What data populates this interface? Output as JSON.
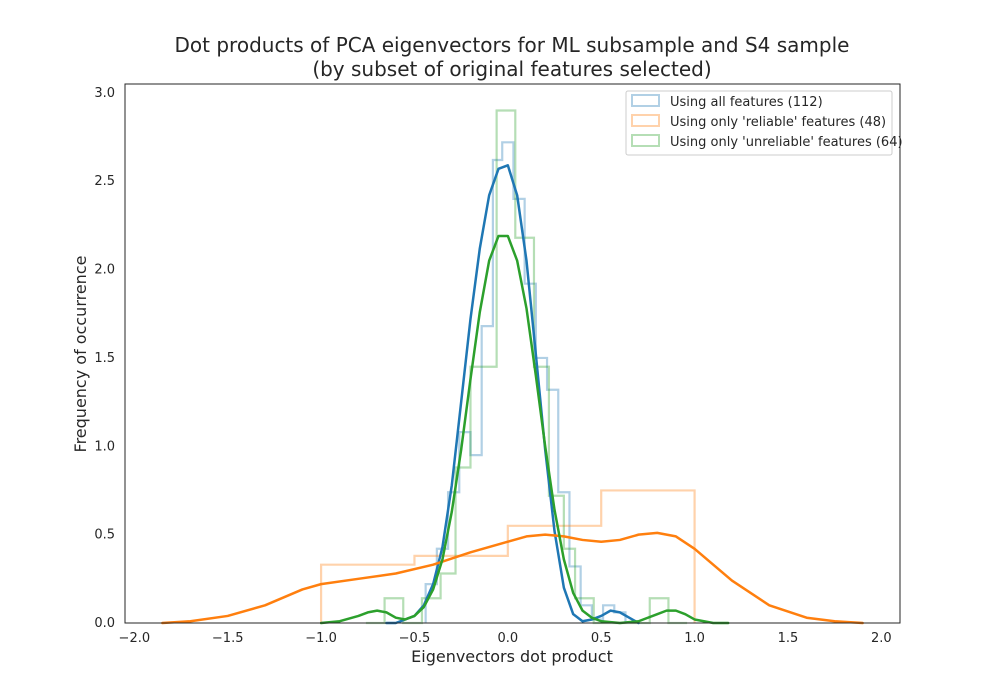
{
  "chart_data": {
    "type": "histogram",
    "title_line1": "Dot products of PCA eigenvectors for ML subsample and S4 sample",
    "title_line2": "(by subset of original features selected)",
    "xlabel": "Eigenvectors dot product",
    "ylabel": "Frequency of occurrence",
    "xlim": [
      -2.05,
      2.1
    ],
    "ylim": [
      0,
      3.05
    ],
    "x_ticks": [
      "−2.0",
      "−1.5",
      "−1.0",
      "−0.5",
      "0.0",
      "0.5",
      "1.0",
      "1.5",
      "2.0"
    ],
    "x_tick_values": [
      -2.0,
      -1.5,
      -1.0,
      -0.5,
      0.0,
      0.5,
      1.0,
      1.5,
      2.0
    ],
    "y_ticks": [
      "0.0",
      "0.5",
      "1.0",
      "1.5",
      "2.0",
      "2.5",
      "3.0"
    ],
    "y_tick_values": [
      0.0,
      0.5,
      1.0,
      1.5,
      2.0,
      2.5,
      3.0
    ],
    "grid": false,
    "legend_position": "top-right",
    "series": [
      {
        "name": "Using all features (112)",
        "color": "#1f77b4",
        "hist_bins": [
          [
            -0.44,
            -0.38,
            0.22
          ],
          [
            -0.38,
            -0.32,
            0.42
          ],
          [
            -0.32,
            -0.26,
            0.74
          ],
          [
            -0.26,
            -0.2,
            1.08
          ],
          [
            -0.2,
            -0.14,
            0.95
          ],
          [
            -0.14,
            -0.08,
            1.68
          ],
          [
            -0.08,
            -0.03,
            2.62
          ],
          [
            -0.03,
            0.03,
            2.72
          ],
          [
            0.03,
            0.09,
            2.4
          ],
          [
            0.09,
            0.15,
            1.92
          ],
          [
            0.15,
            0.21,
            1.5
          ],
          [
            0.21,
            0.27,
            1.32
          ],
          [
            0.27,
            0.33,
            0.74
          ],
          [
            0.33,
            0.39,
            0.32
          ],
          [
            0.39,
            0.45,
            0.1
          ],
          [
            0.45,
            0.51,
            0.02
          ],
          [
            0.51,
            0.57,
            0.1
          ],
          [
            0.57,
            0.63,
            0.06
          ]
        ],
        "kde_x": [
          -0.65,
          -0.6,
          -0.5,
          -0.45,
          -0.4,
          -0.35,
          -0.3,
          -0.25,
          -0.2,
          -0.15,
          -0.1,
          -0.05,
          0.0,
          0.05,
          0.1,
          0.15,
          0.2,
          0.25,
          0.3,
          0.35,
          0.4,
          0.45,
          0.5,
          0.55,
          0.6,
          0.65,
          0.7
        ],
        "kde_y": [
          0.0,
          0.0,
          0.04,
          0.1,
          0.22,
          0.43,
          0.78,
          1.25,
          1.72,
          2.12,
          2.42,
          2.57,
          2.59,
          2.42,
          2.05,
          1.52,
          0.98,
          0.52,
          0.2,
          0.05,
          0.01,
          0.02,
          0.04,
          0.07,
          0.06,
          0.03,
          0.0
        ]
      },
      {
        "name": "Using only 'reliable' features (48)",
        "color": "#ff7f0e",
        "hist_bins": [
          [
            -1.0,
            -0.5,
            0.33
          ],
          [
            -0.5,
            0.0,
            0.38
          ],
          [
            0.0,
            0.5,
            0.55
          ],
          [
            0.5,
            1.0,
            0.75
          ]
        ],
        "kde_x": [
          -1.85,
          -1.7,
          -1.5,
          -1.3,
          -1.1,
          -1.0,
          -0.8,
          -0.6,
          -0.4,
          -0.2,
          0.0,
          0.1,
          0.2,
          0.3,
          0.4,
          0.5,
          0.6,
          0.7,
          0.8,
          0.9,
          1.0,
          1.1,
          1.2,
          1.4,
          1.6,
          1.75,
          1.9
        ],
        "kde_y": [
          0.0,
          0.01,
          0.04,
          0.1,
          0.19,
          0.22,
          0.25,
          0.28,
          0.33,
          0.4,
          0.46,
          0.49,
          0.5,
          0.49,
          0.47,
          0.46,
          0.47,
          0.5,
          0.51,
          0.49,
          0.42,
          0.33,
          0.24,
          0.1,
          0.03,
          0.01,
          0.0
        ]
      },
      {
        "name": "Using only 'unreliable' features (64)",
        "color": "#2ca02c",
        "hist_bins": [
          [
            -0.76,
            -0.66,
            0.0
          ],
          [
            -0.66,
            -0.56,
            0.14
          ],
          [
            -0.56,
            -0.46,
            0.0
          ],
          [
            -0.46,
            -0.36,
            0.14
          ],
          [
            -0.36,
            -0.28,
            0.28
          ],
          [
            -0.28,
            -0.2,
            0.88
          ],
          [
            -0.2,
            -0.13,
            1.45
          ],
          [
            -0.13,
            -0.06,
            1.45
          ],
          [
            -0.06,
            0.04,
            2.9
          ],
          [
            0.04,
            0.14,
            2.18
          ],
          [
            0.14,
            0.22,
            1.45
          ],
          [
            0.22,
            0.3,
            0.72
          ],
          [
            0.3,
            0.36,
            0.42
          ],
          [
            0.36,
            0.46,
            0.14
          ],
          [
            0.46,
            0.56,
            0.0
          ],
          [
            0.56,
            0.66,
            0.0
          ],
          [
            0.66,
            0.76,
            0.0
          ],
          [
            0.76,
            0.86,
            0.14
          ],
          [
            0.86,
            0.96,
            0.0
          ]
        ],
        "kde_x": [
          -1.0,
          -0.9,
          -0.8,
          -0.75,
          -0.7,
          -0.65,
          -0.6,
          -0.55,
          -0.5,
          -0.45,
          -0.4,
          -0.35,
          -0.3,
          -0.25,
          -0.2,
          -0.15,
          -0.1,
          -0.05,
          0.0,
          0.05,
          0.1,
          0.15,
          0.2,
          0.25,
          0.3,
          0.35,
          0.4,
          0.45,
          0.5,
          0.6,
          0.7,
          0.8,
          0.85,
          0.9,
          0.95,
          1.0,
          1.1,
          1.18
        ],
        "kde_y": [
          0.0,
          0.01,
          0.04,
          0.06,
          0.07,
          0.06,
          0.03,
          0.02,
          0.04,
          0.09,
          0.19,
          0.36,
          0.63,
          0.98,
          1.38,
          1.76,
          2.05,
          2.19,
          2.19,
          2.05,
          1.78,
          1.4,
          1.0,
          0.64,
          0.36,
          0.17,
          0.07,
          0.03,
          0.01,
          0.0,
          0.01,
          0.05,
          0.07,
          0.07,
          0.05,
          0.02,
          0.0,
          0.0
        ]
      }
    ]
  }
}
